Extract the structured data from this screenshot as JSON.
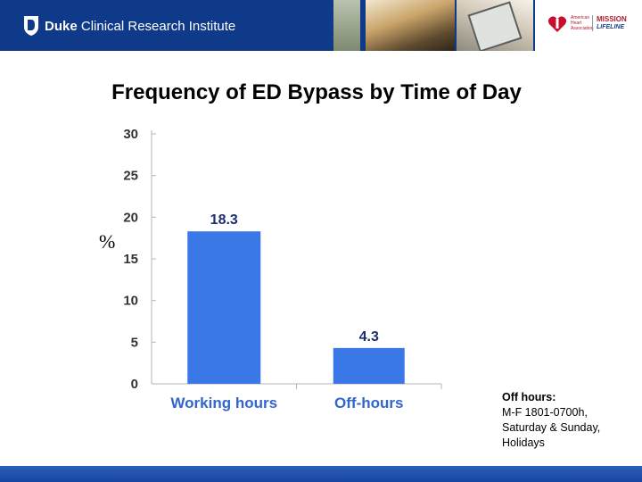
{
  "header": {
    "org_name_bold": "Duke",
    "org_name_rest": "Clinical Research Institute",
    "partner_small": "American Heart Association",
    "partner_mission": "MISSION",
    "partner_lifeline": "LIFELINE",
    "brand_color": "#0f3a8a"
  },
  "slide": {
    "title": "Frequency of ED Bypass by Time of Day",
    "y_symbol": "%"
  },
  "note": {
    "heading": "Off hours:",
    "lines": [
      "M-F 1801-0700h,",
      "Saturday & Sunday,",
      "Holidays"
    ]
  },
  "chart_data": {
    "type": "bar",
    "categories": [
      "Working hours",
      "Off-hours"
    ],
    "values": [
      18.3,
      4.3
    ],
    "value_labels": [
      "18.3",
      "4.3"
    ],
    "ylabel": "%",
    "ylim": [
      0,
      30
    ],
    "yticks": [
      0,
      5,
      10,
      15,
      20,
      25,
      30
    ],
    "grid": false,
    "bar_color": "#3b78e7"
  }
}
